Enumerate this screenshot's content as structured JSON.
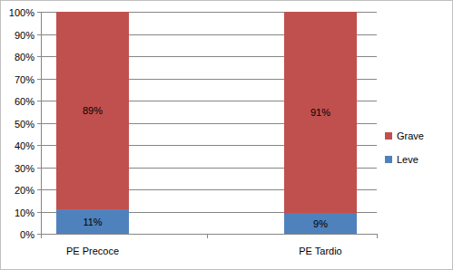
{
  "chart_data": {
    "type": "bar",
    "stacked": true,
    "grid": true,
    "legend": "right",
    "data_labels": true,
    "categories": [
      "PE Precoce",
      "PE Tardio"
    ],
    "series": [
      {
        "name": "Leve",
        "color": "#4f81bd",
        "values": [
          11,
          9
        ],
        "value_labels": [
          "11%",
          "9%"
        ]
      },
      {
        "name": "Grave",
        "color": "#c0504d",
        "values": [
          89,
          91
        ],
        "value_labels": [
          "89%",
          "91%"
        ]
      }
    ],
    "ylim": [
      0,
      100
    ],
    "yticks": [
      {
        "value": 0,
        "label": "0%"
      },
      {
        "value": 10,
        "label": "10%"
      },
      {
        "value": 20,
        "label": "20%"
      },
      {
        "value": 30,
        "label": "30%"
      },
      {
        "value": 40,
        "label": "40%"
      },
      {
        "value": 50,
        "label": "50%"
      },
      {
        "value": 60,
        "label": "60%"
      },
      {
        "value": 70,
        "label": "70%"
      },
      {
        "value": 80,
        "label": "80%"
      },
      {
        "value": 90,
        "label": "90%"
      },
      {
        "value": 100,
        "label": "100%"
      }
    ]
  }
}
